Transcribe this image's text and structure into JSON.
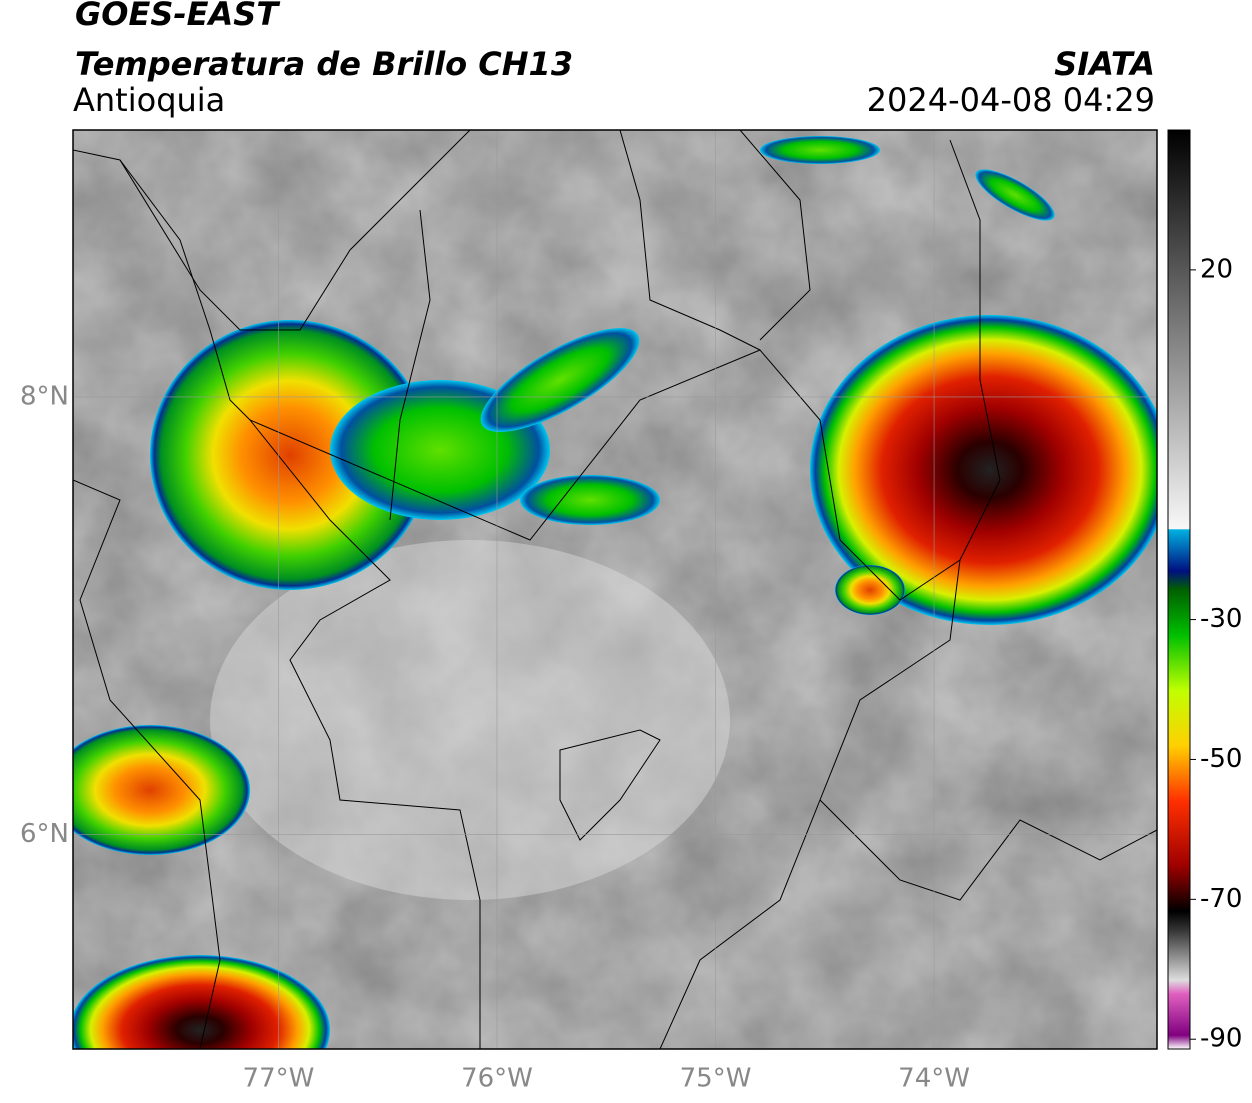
{
  "header": {
    "title": "GOES-EAST",
    "subtitle": "Temperatura de Brillo CH13",
    "region": "Antioquia",
    "source": "SIATA",
    "datetime": "2024-04-08 04:29"
  },
  "map": {
    "xlim": [
      -77.94,
      -72.98
    ],
    "ylim": [
      5.02,
      9.22
    ],
    "xticks": [
      {
        "value": -77,
        "label": "77°W"
      },
      {
        "value": -76,
        "label": "76°W"
      },
      {
        "value": -75,
        "label": "75°W"
      },
      {
        "value": -74,
        "label": "74°W"
      }
    ],
    "yticks": [
      {
        "value": 8,
        "label": "8°N"
      },
      {
        "value": 6,
        "label": "6°N"
      }
    ],
    "grid": true
  },
  "colorbar": {
    "clim": [
      -91.4,
      40
    ],
    "ticks": [
      20,
      -30,
      -50,
      -70,
      -90
    ]
  }
}
